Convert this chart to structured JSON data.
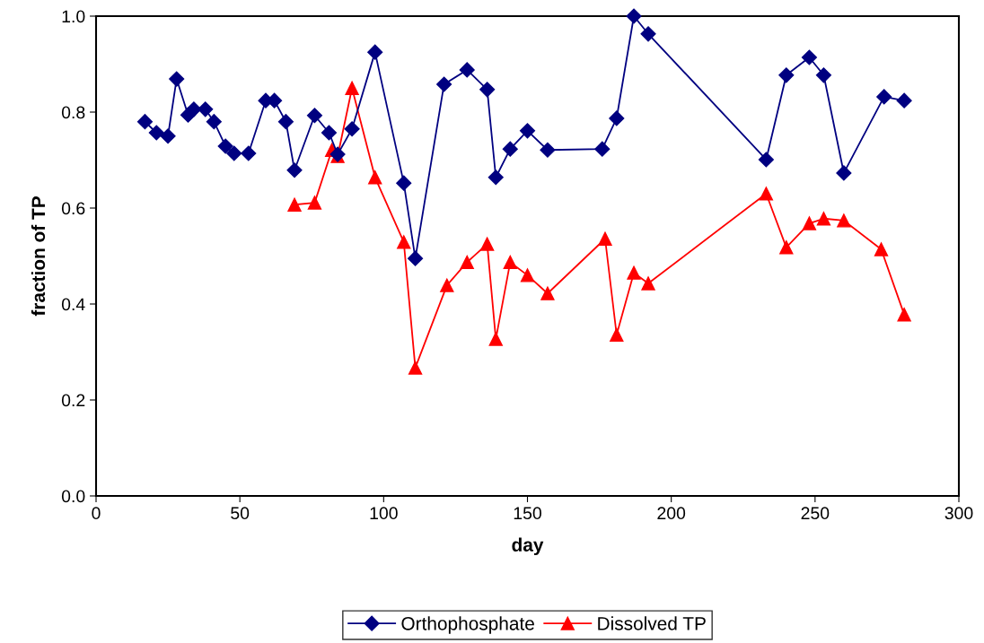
{
  "chart_data": {
    "type": "line",
    "xlabel": "day",
    "ylabel": "fraction of TP",
    "xlim": [
      0,
      300
    ],
    "xticks": [
      0,
      50,
      100,
      150,
      200,
      250,
      300
    ],
    "ylim": [
      0,
      1.0
    ],
    "yticks": [
      {
        "value": 0,
        "label": "0.0"
      },
      {
        "value": 0.2,
        "label": "0.2"
      },
      {
        "value": 0.4,
        "label": "0.4"
      },
      {
        "value": 0.6,
        "label": "0.6"
      },
      {
        "value": 0.8,
        "label": "0.8"
      },
      {
        "value": 1.0,
        "label": "1.0"
      }
    ],
    "grid": false,
    "legend": "bottom",
    "line_style": "solid",
    "series": [
      {
        "name": "Orthophosphate",
        "color": "#000080",
        "marker": "diamond",
        "x": [
          17,
          21,
          25,
          28,
          32,
          34,
          38,
          41,
          45,
          48,
          53,
          59,
          62,
          66,
          69,
          76,
          81,
          84,
          89,
          97,
          107,
          111,
          121,
          129,
          136,
          139,
          144,
          150,
          157,
          176,
          181,
          187,
          192,
          233,
          240,
          248,
          253,
          260,
          274,
          281
        ],
        "values": [
          0.78,
          0.757,
          0.75,
          0.869,
          0.794,
          0.806,
          0.806,
          0.78,
          0.729,
          0.714,
          0.714,
          0.824,
          0.824,
          0.78,
          0.679,
          0.793,
          0.757,
          0.712,
          0.765,
          0.925,
          0.652,
          0.495,
          0.858,
          0.888,
          0.847,
          0.664,
          0.723,
          0.761,
          0.721,
          0.723,
          0.787,
          1.0,
          0.963,
          0.701,
          0.877,
          0.914,
          0.877,
          0.673,
          0.832,
          0.824
        ]
      },
      {
        "name": "Dissolved TP",
        "color": "#ff0000",
        "marker": "triangle",
        "x": [
          69,
          76,
          82,
          84,
          89,
          97,
          107,
          111,
          122,
          129,
          136,
          139,
          144,
          150,
          157,
          177,
          181,
          187,
          192,
          233,
          240,
          248,
          253,
          260,
          273,
          281
        ],
        "values": [
          0.607,
          0.611,
          0.721,
          0.708,
          0.85,
          0.664,
          0.529,
          0.267,
          0.439,
          0.487,
          0.525,
          0.327,
          0.487,
          0.46,
          0.422,
          0.536,
          0.336,
          0.465,
          0.443,
          0.63,
          0.518,
          0.568,
          0.578,
          0.574,
          0.514,
          0.378
        ]
      }
    ]
  }
}
